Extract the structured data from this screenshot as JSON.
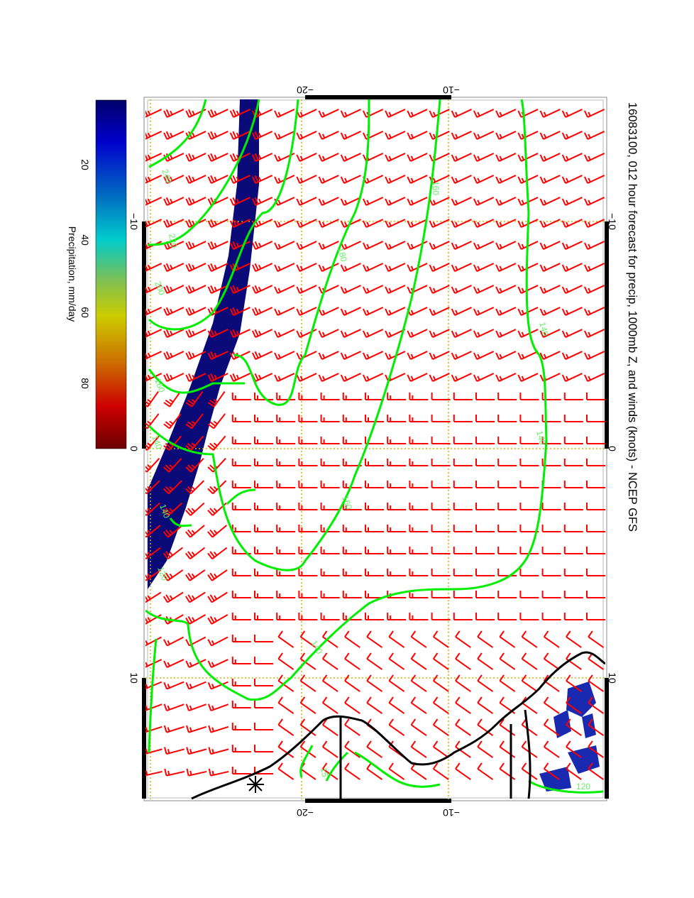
{
  "title": "16083100, 012 hour forecast for precip, 1000mb Z, and winds (knots) - NCEP GFS",
  "colorbar": {
    "label": "Precipitation, mm/day",
    "ticks": [
      "20",
      "40",
      "60",
      "80"
    ],
    "colors": [
      "#00006a",
      "#0000cc",
      "#0070c0",
      "#00cccc",
      "#80c050",
      "#cccc00",
      "#cc7000",
      "#cc0000",
      "#6a0000"
    ]
  },
  "axes": {
    "top_ticks": [
      "−20",
      "−10"
    ],
    "bottom_ticks": [
      "−20",
      "−10"
    ],
    "left_ticks": [
      "−10",
      "0",
      "10"
    ],
    "right_ticks": [
      "−10",
      "0",
      "10"
    ]
  },
  "contour_labels": [
    "240",
    "220",
    "200",
    "160",
    "140",
    "140",
    "120",
    "180",
    "160",
    "160",
    "140",
    "140",
    "140",
    "120",
    "15"
  ],
  "colors": {
    "contour": "#00ee00",
    "barb": "#ff0000",
    "precip": "#0a0a78",
    "grid": "#d4b000",
    "coast": "#000000"
  }
}
